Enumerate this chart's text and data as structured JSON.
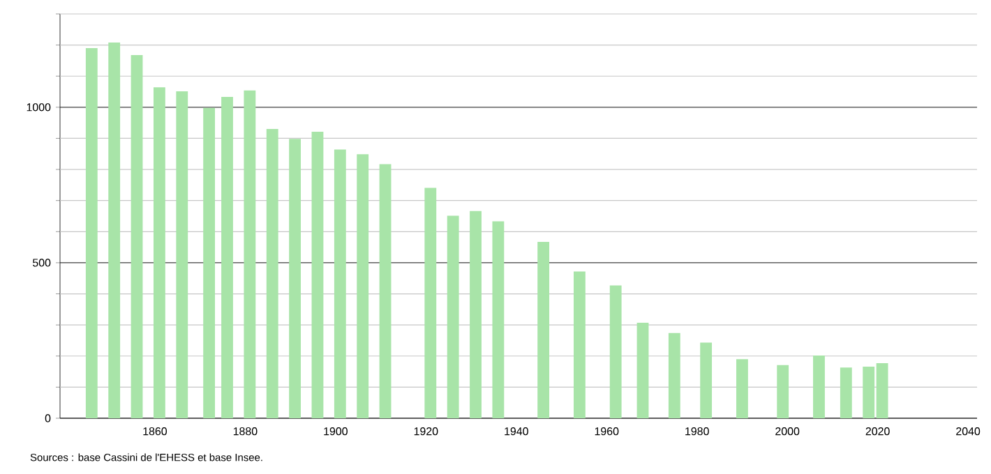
{
  "chart_data": {
    "type": "bar",
    "x": [
      1846,
      1851,
      1856,
      1861,
      1866,
      1872,
      1876,
      1881,
      1886,
      1891,
      1896,
      1901,
      1906,
      1911,
      1921,
      1926,
      1931,
      1936,
      1946,
      1954,
      1962,
      1968,
      1975,
      1982,
      1990,
      1999,
      2007,
      2013,
      2018,
      2021
    ],
    "values": [
      1190,
      1208,
      1168,
      1064,
      1051,
      998,
      1033,
      1054,
      930,
      898,
      921,
      864,
      849,
      817,
      741,
      651,
      666,
      633,
      567,
      472,
      427,
      307,
      274,
      243,
      190,
      171,
      202,
      163,
      166,
      177
    ],
    "color": "#a8e4a8",
    "xlim": [
      1839,
      2042
    ],
    "xticks": [
      1860,
      1880,
      1900,
      1920,
      1940,
      1960,
      1980,
      2000,
      2020,
      2040
    ],
    "ylim": [
      0,
      1300
    ],
    "yticks": [
      0,
      {
        "value": 100,
        "label": null
      },
      {
        "value": 200,
        "label": null
      },
      {
        "value": 300,
        "label": null
      },
      {
        "value": 400,
        "label": null
      },
      500,
      {
        "value": 600,
        "label": null
      },
      {
        "value": 700,
        "label": null
      },
      {
        "value": 800,
        "label": null
      },
      {
        "value": 900,
        "label": null
      },
      1000,
      {
        "value": 1100,
        "label": null
      },
      {
        "value": 1200,
        "label": null
      },
      {
        "value": 1300,
        "label": null
      }
    ],
    "grid": "y",
    "annotations": [
      "Sources : base Cassini de l'EHESS et base Insee."
    ]
  }
}
